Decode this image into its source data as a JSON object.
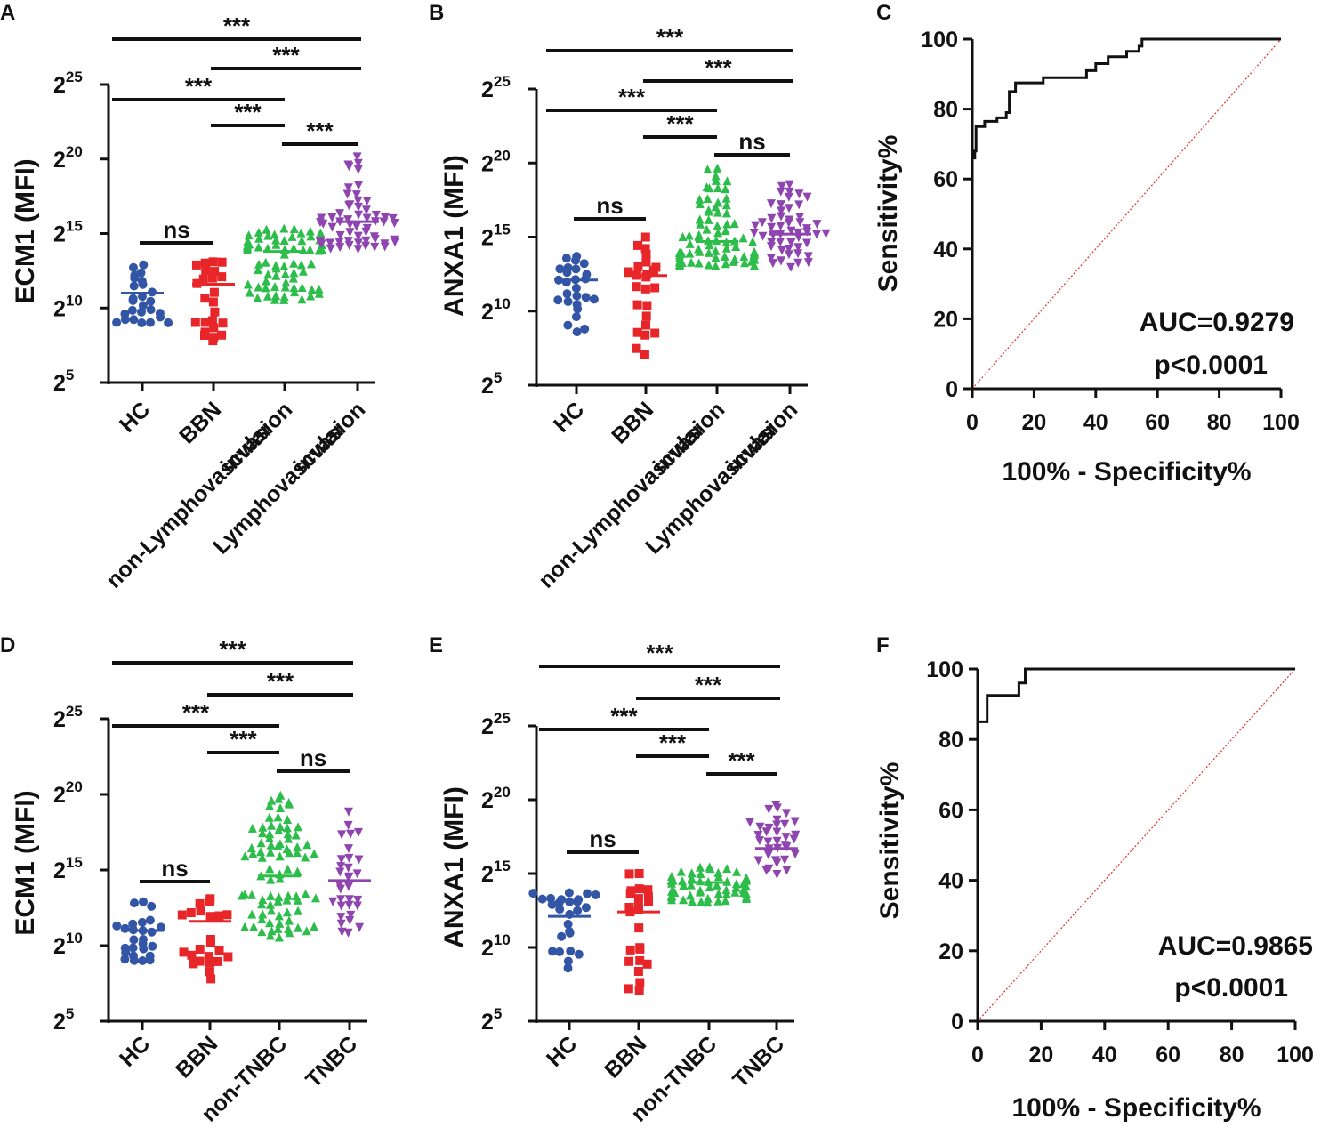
{
  "figure": {
    "colors": {
      "HC": "#3355a6",
      "BBN": "#e8262a",
      "G3": "#2dbd4a",
      "G4": "#8e45b0",
      "diag": "#e03030",
      "axis": "#111111"
    }
  },
  "chart_data": [
    {
      "panel": "A",
      "type": "scatter",
      "ylabel": "ECM1 (MFI)",
      "log_base": 2,
      "yticks": [
        {
          "base": "2",
          "exp": "5"
        },
        {
          "base": "2",
          "exp": "10"
        },
        {
          "base": "2",
          "exp": "15"
        },
        {
          "base": "2",
          "exp": "20"
        },
        {
          "base": "2",
          "exp": "25"
        }
      ],
      "ylim_exp": [
        5,
        25
      ],
      "categories": [
        {
          "label_lines": [
            "HC"
          ],
          "n": 26,
          "median_exp": 11.0,
          "min_exp": 9.0,
          "max_exp": 12.9,
          "color": "#3355a6",
          "marker": "circle"
        },
        {
          "label_lines": [
            "BBN"
          ],
          "n": 24,
          "median_exp": 11.6,
          "min_exp": 7.8,
          "max_exp": 13.1,
          "color": "#e8262a",
          "marker": "square"
        },
        {
          "label_lines": [
            "non-Lymphovascular",
            "invasion"
          ],
          "n": 72,
          "median_exp": 13.8,
          "min_exp": 10.5,
          "max_exp": 15.3,
          "color": "#2dbd4a",
          "marker": "triangle-up"
        },
        {
          "label_lines": [
            "Lymphovascular",
            "invasion"
          ],
          "n": 58,
          "median_exp": 15.8,
          "min_exp": 14.0,
          "max_exp": 20.2,
          "color": "#8e45b0",
          "marker": "triangle-down"
        }
      ],
      "brackets": [
        {
          "from": 0,
          "to": 3,
          "label": "***"
        },
        {
          "from": 1,
          "to": 3,
          "label": "***"
        },
        {
          "from": 0,
          "to": 2,
          "label": "***"
        },
        {
          "from": 1,
          "to": 2,
          "label": "***"
        },
        {
          "from": 2,
          "to": 3,
          "label": "***"
        },
        {
          "from": 0,
          "to": 1,
          "label": "ns"
        }
      ]
    },
    {
      "panel": "B",
      "type": "scatter",
      "ylabel": "ANXA1 (MFI)",
      "log_base": 2,
      "yticks": [
        {
          "base": "2",
          "exp": "5"
        },
        {
          "base": "2",
          "exp": "10"
        },
        {
          "base": "2",
          "exp": "15"
        },
        {
          "base": "2",
          "exp": "20"
        },
        {
          "base": "2",
          "exp": "25"
        }
      ],
      "ylim_exp": [
        5,
        25
      ],
      "categories": [
        {
          "label_lines": [
            "HC"
          ],
          "n": 26,
          "median_exp": 12.1,
          "min_exp": 8.6,
          "max_exp": 13.7,
          "color": "#3355a6",
          "marker": "circle"
        },
        {
          "label_lines": [
            "BBN"
          ],
          "n": 24,
          "median_exp": 12.4,
          "min_exp": 7.1,
          "max_exp": 15.0,
          "color": "#e8262a",
          "marker": "square"
        },
        {
          "label_lines": [
            "non-Lymphovascular",
            "invasion"
          ],
          "n": 80,
          "median_exp": 14.7,
          "min_exp": 13.0,
          "max_exp": 19.6,
          "color": "#2dbd4a",
          "marker": "triangle-up"
        },
        {
          "label_lines": [
            "Lymphovascular",
            "invasion"
          ],
          "n": 52,
          "median_exp": 15.2,
          "min_exp": 13.0,
          "max_exp": 18.6,
          "color": "#8e45b0",
          "marker": "triangle-down"
        }
      ],
      "brackets": [
        {
          "from": 0,
          "to": 3,
          "label": "***"
        },
        {
          "from": 1,
          "to": 3,
          "label": "***"
        },
        {
          "from": 0,
          "to": 2,
          "label": "***"
        },
        {
          "from": 1,
          "to": 2,
          "label": "***"
        },
        {
          "from": 2,
          "to": 3,
          "label": "ns"
        },
        {
          "from": 0,
          "to": 1,
          "label": "ns"
        }
      ]
    },
    {
      "panel": "C",
      "type": "line",
      "ylabel": "Sensitivity%",
      "xlabel": "100% - Specificity%",
      "xticks": [
        0,
        20,
        40,
        60,
        80,
        100
      ],
      "yticks": [
        0,
        20,
        40,
        60,
        80,
        100
      ],
      "xlim": [
        0,
        100
      ],
      "ylim": [
        0,
        100
      ],
      "auc_text": "AUC=0.9279",
      "p_text": "p<0.0001",
      "roc": [
        [
          0,
          0
        ],
        [
          0,
          66
        ],
        [
          0.8,
          66
        ],
        [
          0.8,
          68
        ],
        [
          1.2,
          68
        ],
        [
          1.2,
          75
        ],
        [
          4,
          75
        ],
        [
          4,
          76.5
        ],
        [
          8,
          76.5
        ],
        [
          8,
          77.5
        ],
        [
          11,
          77.5
        ],
        [
          11,
          79
        ],
        [
          12,
          79
        ],
        [
          12,
          85
        ],
        [
          14,
          85
        ],
        [
          14,
          87.5
        ],
        [
          23,
          87.5
        ],
        [
          23,
          89
        ],
        [
          37,
          89
        ],
        [
          37,
          91
        ],
        [
          40,
          91
        ],
        [
          40,
          93
        ],
        [
          44,
          93
        ],
        [
          44,
          95
        ],
        [
          50,
          95
        ],
        [
          50,
          96.5
        ],
        [
          54,
          96.5
        ],
        [
          54,
          98
        ],
        [
          55,
          98
        ],
        [
          55,
          100
        ],
        [
          100,
          100
        ]
      ]
    },
    {
      "panel": "D",
      "type": "scatter",
      "ylabel": "ECM1 (MFI)",
      "log_base": 2,
      "yticks": [
        {
          "base": "2",
          "exp": "5"
        },
        {
          "base": "2",
          "exp": "10"
        },
        {
          "base": "2",
          "exp": "15"
        },
        {
          "base": "2",
          "exp": "20"
        },
        {
          "base": "2",
          "exp": "25"
        }
      ],
      "ylim_exp": [
        5,
        25
      ],
      "categories": [
        {
          "label_lines": [
            "HC"
          ],
          "n": 26,
          "median_exp": 11.0,
          "min_exp": 9.0,
          "max_exp": 12.9,
          "color": "#3355a6",
          "marker": "circle"
        },
        {
          "label_lines": [
            "BBN"
          ],
          "n": 24,
          "median_exp": 11.6,
          "min_exp": 7.8,
          "max_exp": 13.1,
          "color": "#e8262a",
          "marker": "square"
        },
        {
          "label_lines": [
            "non-TNBC"
          ],
          "n": 85,
          "median_exp": 14.6,
          "min_exp": 10.5,
          "max_exp": 19.9,
          "color": "#2dbd4a",
          "marker": "triangle-up"
        },
        {
          "label_lines": [
            "TNBC"
          ],
          "n": 32,
          "median_exp": 14.3,
          "min_exp": 10.9,
          "max_exp": 18.9,
          "color": "#8e45b0",
          "marker": "triangle-down"
        }
      ],
      "brackets": [
        {
          "from": 0,
          "to": 3,
          "label": "***"
        },
        {
          "from": 1,
          "to": 3,
          "label": "***"
        },
        {
          "from": 0,
          "to": 2,
          "label": "***"
        },
        {
          "from": 1,
          "to": 2,
          "label": "***"
        },
        {
          "from": 2,
          "to": 3,
          "label": "ns"
        },
        {
          "from": 0,
          "to": 1,
          "label": "ns"
        }
      ]
    },
    {
      "panel": "E",
      "type": "scatter",
      "ylabel": "ANXA1 (MFI)",
      "log_base": 2,
      "yticks": [
        {
          "base": "2",
          "exp": "5"
        },
        {
          "base": "2",
          "exp": "10"
        },
        {
          "base": "2",
          "exp": "15"
        },
        {
          "base": "2",
          "exp": "20"
        },
        {
          "base": "2",
          "exp": "25"
        }
      ],
      "ylim_exp": [
        5,
        25
      ],
      "categories": [
        {
          "label_lines": [
            "HC"
          ],
          "n": 26,
          "median_exp": 12.1,
          "min_exp": 8.6,
          "max_exp": 13.7,
          "color": "#3355a6",
          "marker": "circle"
        },
        {
          "label_lines": [
            "BBN"
          ],
          "n": 24,
          "median_exp": 12.4,
          "min_exp": 7.1,
          "max_exp": 15.0,
          "color": "#e8262a",
          "marker": "square"
        },
        {
          "label_lines": [
            "non-TNBC"
          ],
          "n": 58,
          "median_exp": 14.4,
          "min_exp": 13.0,
          "max_exp": 15.4,
          "color": "#2dbd4a",
          "marker": "triangle-up"
        },
        {
          "label_lines": [
            "TNBC"
          ],
          "n": 34,
          "median_exp": 16.7,
          "min_exp": 15.0,
          "max_exp": 19.7,
          "color": "#8e45b0",
          "marker": "triangle-down"
        }
      ],
      "brackets": [
        {
          "from": 0,
          "to": 3,
          "label": "***"
        },
        {
          "from": 1,
          "to": 3,
          "label": "***"
        },
        {
          "from": 0,
          "to": 2,
          "label": "***"
        },
        {
          "from": 1,
          "to": 2,
          "label": "***"
        },
        {
          "from": 2,
          "to": 3,
          "label": "***"
        },
        {
          "from": 0,
          "to": 1,
          "label": "ns"
        }
      ]
    },
    {
      "panel": "F",
      "type": "line",
      "ylabel": "Sensitivity%",
      "xlabel": "100% - Specificity%",
      "xticks": [
        0,
        20,
        40,
        60,
        80,
        100
      ],
      "yticks": [
        0,
        20,
        40,
        60,
        80,
        100
      ],
      "xlim": [
        0,
        100
      ],
      "ylim": [
        0,
        100
      ],
      "auc_text": "AUC=0.9865",
      "p_text": "p<0.0001",
      "roc": [
        [
          0,
          0
        ],
        [
          0,
          85
        ],
        [
          3,
          85
        ],
        [
          3,
          92.5
        ],
        [
          13,
          92.5
        ],
        [
          13,
          96
        ],
        [
          15,
          96
        ],
        [
          15,
          100
        ],
        [
          100,
          100
        ]
      ]
    }
  ]
}
